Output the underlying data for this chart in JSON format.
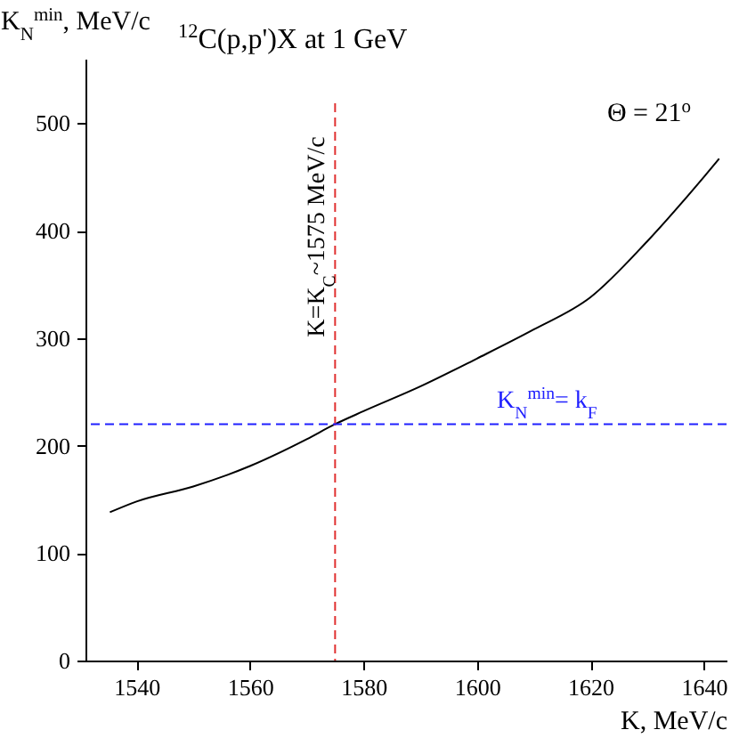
{
  "chart_data": {
    "type": "line",
    "title": "$^{12}$C(p,p')X at 1 GeV",
    "xlabel": "K, MeV/c",
    "ylabel": "K$_{N}$$^{min}$, MeV/c",
    "annotations": [
      "Θ = 21$^{o}$"
    ],
    "x": [
      1535.3,
      1540,
      1550,
      1560,
      1570,
      1575,
      1580,
      1590,
      1600,
      1610,
      1620,
      1630,
      1640,
      1642.7
    ],
    "series": [
      {
        "color": "#000000",
        "values": [
          138,
          148,
          162,
          181,
          206,
          220,
          232,
          255,
          281,
          308,
          338,
          390,
          450,
          467
        ]
      }
    ],
    "xlim": [
      1531,
      1644
    ],
    "xticks": [
      1540,
      1560,
      1580,
      1600,
      1620,
      1640
    ],
    "ylim": [
      0,
      560
    ],
    "yticks": [
      0,
      100,
      200,
      300,
      400,
      500
    ],
    "grid": false,
    "marker": "none",
    "line_style": "solid",
    "ref_lines": [
      {
        "axis": "x",
        "value": 1575,
        "label": "K=K$_{C}$~1575 MeV/c",
        "color": "#e03030",
        "line_style": "dashed"
      },
      {
        "axis": "y",
        "value": 220,
        "label": "K$_{N}$$^{min}$= k$_{F}$",
        "color": "#2020ff",
        "line_style": "dashed"
      }
    ]
  }
}
